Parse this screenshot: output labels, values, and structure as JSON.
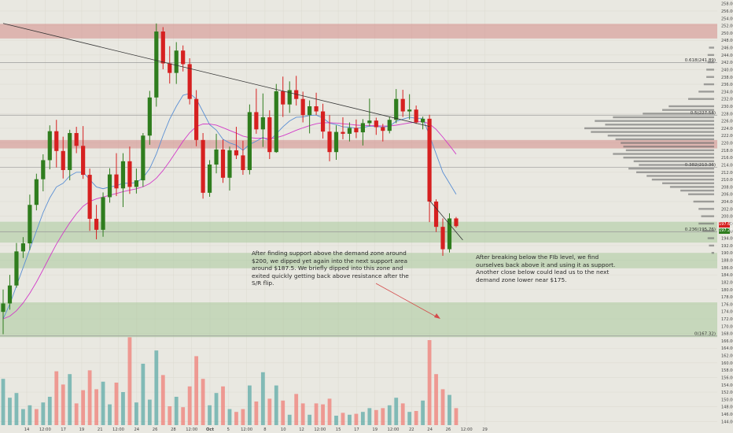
{
  "colors": {
    "background": "#e9e8e1",
    "up_candle": "#2f7d1e",
    "down_candle": "#d62020",
    "supply_zone": "#d48a88",
    "demand_zone": "#a9c99d",
    "volume_up": "#6fb2ae",
    "volume_down": "#ef8b84",
    "ema_fast": "#5a8fd4",
    "ema_slow": "#d23cc8",
    "trendline": "#333333",
    "profile": "#6a6a6a",
    "annotation_arrow": "#d44b4b"
  },
  "annotations": {
    "note_1": "After finding support above the demand zone around $200, we dipped yet again into the next support area around $187.5. We briefly dipped into this zone and exited quickly getting back above resistance after the S/R flip.",
    "note_2": "After breaking below the FIb level, we find ourselves back above it and using it as support. Another close below could lead us to the next demand zone lower near $175."
  },
  "chart_data": {
    "type": "candlestick",
    "title": "",
    "xlabel": "",
    "ylabel": "",
    "ylim": [
      143,
      259
    ],
    "grid": true,
    "x_ticks": [
      "14",
      "12:00",
      "17",
      "19",
      "21",
      "12:00",
      "24",
      "26",
      "28",
      "12:00",
      "Oct",
      "5",
      "12:00",
      "8",
      "10",
      "12",
      "12:00",
      "15",
      "17",
      "19",
      "12:00",
      "22",
      "24",
      "26",
      "12:00",
      "29"
    ],
    "y_ticks": [
      144,
      146,
      148,
      150,
      152,
      154,
      156,
      158,
      160,
      162,
      164,
      166,
      168,
      170,
      172,
      174,
      176,
      178,
      180,
      182,
      184,
      186,
      188,
      190,
      192,
      194,
      196,
      198,
      200,
      202,
      204,
      206,
      208,
      210,
      212,
      214,
      216,
      218,
      220,
      222,
      224,
      226,
      228,
      230,
      232,
      234,
      236,
      238,
      240,
      242,
      244,
      246,
      248,
      250,
      252,
      254,
      256,
      258
    ],
    "current_prices": [
      "197.64",
      "197.26"
    ],
    "fib_levels": [
      {
        "label": "0.618(241.89)",
        "value": 241.89
      },
      {
        "label": "0.5(227.58)",
        "value": 227.58
      },
      {
        "label": "0.382(213.36)",
        "value": 213.36
      },
      {
        "label": "0.236(195.76)",
        "value": 195.76
      },
      {
        "label": "0(167.32)",
        "value": 167.32
      }
    ],
    "zones": [
      {
        "type": "supply",
        "from": 248.5,
        "to": 252.5
      },
      {
        "type": "supply",
        "from": 218.5,
        "to": 220.8
      },
      {
        "type": "demand",
        "from": 192.8,
        "to": 198.5
      },
      {
        "type": "demand",
        "from": 185.8,
        "to": 190.0
      },
      {
        "type": "demand",
        "from": 167.0,
        "to": 176.5
      }
    ],
    "trendlines": [
      {
        "from": [
          0,
          252.6
        ],
        "to": [
          64,
          224.5
        ]
      },
      {
        "from": [
          64,
          204.3
        ],
        "to": [
          69,
          193.5
        ]
      }
    ],
    "candles": [
      {
        "o": 173.9,
        "h": 180.0,
        "l": 167.8,
        "c": 176.2
      },
      {
        "o": 176.2,
        "h": 184.0,
        "l": 174.5,
        "c": 181.1
      },
      {
        "o": 181.1,
        "h": 192.7,
        "l": 180.5,
        "c": 190.4
      },
      {
        "o": 190.4,
        "h": 194.3,
        "l": 188.6,
        "c": 192.6
      },
      {
        "o": 192.6,
        "h": 205.9,
        "l": 190.8,
        "c": 203.1
      },
      {
        "o": 203.1,
        "h": 211.6,
        "l": 201.6,
        "c": 210.1
      },
      {
        "o": 210.1,
        "h": 216.9,
        "l": 206.8,
        "c": 215.3
      },
      {
        "o": 215.3,
        "h": 224.8,
        "l": 212.8,
        "c": 223.2
      },
      {
        "o": 223.2,
        "h": 226.3,
        "l": 213.3,
        "c": 217.8
      },
      {
        "o": 217.8,
        "h": 221.7,
        "l": 210.3,
        "c": 212.6
      },
      {
        "o": 212.6,
        "h": 223.6,
        "l": 209.8,
        "c": 222.7
      },
      {
        "o": 222.7,
        "h": 224.4,
        "l": 217.2,
        "c": 219.2
      },
      {
        "o": 219.2,
        "h": 224.6,
        "l": 210.2,
        "c": 211.3
      },
      {
        "o": 211.3,
        "h": 213.0,
        "l": 196.0,
        "c": 199.3
      },
      {
        "o": 199.3,
        "h": 203.1,
        "l": 193.7,
        "c": 196.3
      },
      {
        "o": 196.3,
        "h": 206.5,
        "l": 194.4,
        "c": 205.2
      },
      {
        "o": 205.2,
        "h": 213.1,
        "l": 203.7,
        "c": 211.4
      },
      {
        "o": 211.4,
        "h": 217.2,
        "l": 205.5,
        "c": 207.6
      },
      {
        "o": 207.6,
        "h": 217.2,
        "l": 202.5,
        "c": 215.0
      },
      {
        "o": 215.0,
        "h": 219.0,
        "l": 206.1,
        "c": 208.0
      },
      {
        "o": 208.0,
        "h": 213.0,
        "l": 206.2,
        "c": 209.8
      },
      {
        "o": 209.8,
        "h": 222.7,
        "l": 208.0,
        "c": 222.0
      },
      {
        "o": 222.0,
        "h": 234.2,
        "l": 219.5,
        "c": 232.4
      },
      {
        "o": 232.4,
        "h": 252.6,
        "l": 229.9,
        "c": 250.4
      },
      {
        "o": 250.4,
        "h": 251.6,
        "l": 240.1,
        "c": 241.7
      },
      {
        "o": 241.7,
        "h": 246.4,
        "l": 236.2,
        "c": 239.1
      },
      {
        "o": 239.1,
        "h": 247.5,
        "l": 236.1,
        "c": 245.2
      },
      {
        "o": 245.2,
        "h": 246.6,
        "l": 239.5,
        "c": 241.5
      },
      {
        "o": 241.5,
        "h": 243.1,
        "l": 230.5,
        "c": 232.0
      },
      {
        "o": 232.0,
        "h": 234.4,
        "l": 219.1,
        "c": 220.8
      },
      {
        "o": 220.8,
        "h": 222.7,
        "l": 204.8,
        "c": 206.4
      },
      {
        "o": 206.4,
        "h": 215.3,
        "l": 205.3,
        "c": 214.1
      },
      {
        "o": 214.1,
        "h": 222.5,
        "l": 211.7,
        "c": 218.2
      },
      {
        "o": 218.2,
        "h": 220.9,
        "l": 209.1,
        "c": 210.5
      },
      {
        "o": 210.5,
        "h": 219.0,
        "l": 207.0,
        "c": 218.0
      },
      {
        "o": 218.0,
        "h": 224.4,
        "l": 215.6,
        "c": 216.6
      },
      {
        "o": 216.6,
        "h": 220.6,
        "l": 211.3,
        "c": 212.6
      },
      {
        "o": 212.6,
        "h": 230.5,
        "l": 211.4,
        "c": 228.4
      },
      {
        "o": 228.4,
        "h": 234.8,
        "l": 222.5,
        "c": 223.7
      },
      {
        "o": 223.7,
        "h": 233.5,
        "l": 218.9,
        "c": 227.0
      },
      {
        "o": 227.0,
        "h": 228.9,
        "l": 215.6,
        "c": 217.5
      },
      {
        "o": 217.5,
        "h": 236.1,
        "l": 217.3,
        "c": 234.1
      },
      {
        "o": 234.1,
        "h": 238.1,
        "l": 227.1,
        "c": 230.5
      },
      {
        "o": 230.5,
        "h": 236.8,
        "l": 228.2,
        "c": 234.4
      },
      {
        "o": 234.4,
        "h": 238.3,
        "l": 230.2,
        "c": 232.0
      },
      {
        "o": 232.0,
        "h": 234.0,
        "l": 225.6,
        "c": 227.6
      },
      {
        "o": 227.6,
        "h": 231.6,
        "l": 222.6,
        "c": 230.0
      },
      {
        "o": 230.0,
        "h": 233.7,
        "l": 227.6,
        "c": 228.6
      },
      {
        "o": 228.6,
        "h": 230.7,
        "l": 221.2,
        "c": 223.1
      },
      {
        "o": 223.1,
        "h": 227.6,
        "l": 215.0,
        "c": 217.5
      },
      {
        "o": 217.5,
        "h": 224.8,
        "l": 215.4,
        "c": 223.0
      },
      {
        "o": 223.0,
        "h": 227.0,
        "l": 221.0,
        "c": 222.5
      },
      {
        "o": 222.5,
        "h": 225.6,
        "l": 220.4,
        "c": 224.1
      },
      {
        "o": 224.1,
        "h": 226.4,
        "l": 221.3,
        "c": 222.9
      },
      {
        "o": 222.9,
        "h": 226.5,
        "l": 219.3,
        "c": 225.4
      },
      {
        "o": 225.4,
        "h": 232.1,
        "l": 224.5,
        "c": 226.1
      },
      {
        "o": 226.1,
        "h": 226.9,
        "l": 222.2,
        "c": 224.3
      },
      {
        "o": 224.3,
        "h": 225.2,
        "l": 220.4,
        "c": 223.3
      },
      {
        "o": 223.3,
        "h": 227.2,
        "l": 222.6,
        "c": 226.3
      },
      {
        "o": 226.3,
        "h": 234.7,
        "l": 225.4,
        "c": 232.0
      },
      {
        "o": 232.0,
        "h": 234.5,
        "l": 227.1,
        "c": 228.6
      },
      {
        "o": 228.6,
        "h": 233.3,
        "l": 226.4,
        "c": 229.1
      },
      {
        "o": 229.1,
        "h": 230.2,
        "l": 225.2,
        "c": 225.6
      },
      {
        "o": 225.6,
        "h": 227.2,
        "l": 223.7,
        "c": 226.6
      },
      {
        "o": 226.6,
        "h": 227.7,
        "l": 198.4,
        "c": 204.0
      },
      {
        "o": 204.0,
        "h": 204.6,
        "l": 195.7,
        "c": 197.1
      },
      {
        "o": 197.1,
        "h": 199.4,
        "l": 189.2,
        "c": 191.0
      },
      {
        "o": 191.0,
        "h": 200.8,
        "l": 190.1,
        "c": 199.4
      },
      {
        "o": 199.4,
        "h": 199.8,
        "l": 196.9,
        "c": 197.3
      }
    ],
    "volume": [
      {
        "v": 0.49,
        "up": true
      },
      {
        "v": 0.29,
        "up": true
      },
      {
        "v": 0.34,
        "up": true
      },
      {
        "v": 0.17,
        "up": true
      },
      {
        "v": 0.21,
        "up": true
      },
      {
        "v": 0.17,
        "up": false
      },
      {
        "v": 0.24,
        "up": true
      },
      {
        "v": 0.3,
        "up": true
      },
      {
        "v": 0.57,
        "up": false
      },
      {
        "v": 0.43,
        "up": false
      },
      {
        "v": 0.54,
        "up": true
      },
      {
        "v": 0.23,
        "up": false
      },
      {
        "v": 0.37,
        "up": false
      },
      {
        "v": 0.58,
        "up": false
      },
      {
        "v": 0.38,
        "up": false
      },
      {
        "v": 0.46,
        "up": true
      },
      {
        "v": 0.22,
        "up": true
      },
      {
        "v": 0.45,
        "up": false
      },
      {
        "v": 0.35,
        "up": true
      },
      {
        "v": 0.93,
        "up": false
      },
      {
        "v": 0.24,
        "up": true
      },
      {
        "v": 0.65,
        "up": true
      },
      {
        "v": 0.27,
        "up": true
      },
      {
        "v": 0.79,
        "up": true
      },
      {
        "v": 0.53,
        "up": false
      },
      {
        "v": 0.2,
        "up": false
      },
      {
        "v": 0.3,
        "up": true
      },
      {
        "v": 0.19,
        "up": false
      },
      {
        "v": 0.41,
        "up": false
      },
      {
        "v": 0.73,
        "up": false
      },
      {
        "v": 0.49,
        "up": false
      },
      {
        "v": 0.21,
        "up": true
      },
      {
        "v": 0.34,
        "up": true
      },
      {
        "v": 0.41,
        "up": false
      },
      {
        "v": 0.17,
        "up": true
      },
      {
        "v": 0.14,
        "up": false
      },
      {
        "v": 0.17,
        "up": false
      },
      {
        "v": 0.42,
        "up": true
      },
      {
        "v": 0.25,
        "up": false
      },
      {
        "v": 0.56,
        "up": true
      },
      {
        "v": 0.28,
        "up": false
      },
      {
        "v": 0.42,
        "up": true
      },
      {
        "v": 0.26,
        "up": false
      },
      {
        "v": 0.11,
        "up": true
      },
      {
        "v": 0.33,
        "up": false
      },
      {
        "v": 0.23,
        "up": false
      },
      {
        "v": 0.11,
        "up": true
      },
      {
        "v": 0.23,
        "up": false
      },
      {
        "v": 0.22,
        "up": false
      },
      {
        "v": 0.28,
        "up": false
      },
      {
        "v": 0.1,
        "up": true
      },
      {
        "v": 0.13,
        "up": false
      },
      {
        "v": 0.11,
        "up": true
      },
      {
        "v": 0.12,
        "up": false
      },
      {
        "v": 0.14,
        "up": true
      },
      {
        "v": 0.18,
        "up": true
      },
      {
        "v": 0.16,
        "up": false
      },
      {
        "v": 0.18,
        "up": false
      },
      {
        "v": 0.21,
        "up": true
      },
      {
        "v": 0.29,
        "up": true
      },
      {
        "v": 0.23,
        "up": false
      },
      {
        "v": 0.14,
        "up": true
      },
      {
        "v": 0.15,
        "up": false
      },
      {
        "v": 0.26,
        "up": true
      },
      {
        "v": 0.9,
        "up": false
      },
      {
        "v": 0.54,
        "up": false
      },
      {
        "v": 0.38,
        "up": false
      },
      {
        "v": 0.32,
        "up": true
      },
      {
        "v": 0.18,
        "up": false
      }
    ],
    "volume_profile": [
      {
        "p": 246,
        "v": 0.04
      },
      {
        "p": 244,
        "v": 0.05
      },
      {
        "p": 242,
        "v": 0.05
      },
      {
        "p": 240,
        "v": 0.06
      },
      {
        "p": 238,
        "v": 0.06
      },
      {
        "p": 236,
        "v": 0.08
      },
      {
        "p": 234,
        "v": 0.12
      },
      {
        "p": 232,
        "v": 0.2
      },
      {
        "p": 230,
        "v": 0.35
      },
      {
        "p": 229,
        "v": 0.4
      },
      {
        "p": 228,
        "v": 0.55
      },
      {
        "p": 227,
        "v": 0.78
      },
      {
        "p": 226,
        "v": 0.92
      },
      {
        "p": 225,
        "v": 0.84
      },
      {
        "p": 224,
        "v": 1.0
      },
      {
        "p": 223,
        "v": 0.95
      },
      {
        "p": 222,
        "v": 0.82
      },
      {
        "p": 221,
        "v": 0.76
      },
      {
        "p": 220,
        "v": 0.72
      },
      {
        "p": 219,
        "v": 0.7
      },
      {
        "p": 218,
        "v": 0.68
      },
      {
        "p": 217,
        "v": 0.78
      },
      {
        "p": 216,
        "v": 0.7
      },
      {
        "p": 215,
        "v": 0.62
      },
      {
        "p": 214,
        "v": 0.58
      },
      {
        "p": 213,
        "v": 0.66
      },
      {
        "p": 212,
        "v": 0.6
      },
      {
        "p": 211,
        "v": 0.52
      },
      {
        "p": 210,
        "v": 0.48
      },
      {
        "p": 209,
        "v": 0.4
      },
      {
        "p": 208,
        "v": 0.34
      },
      {
        "p": 207,
        "v": 0.26
      },
      {
        "p": 206,
        "v": 0.2
      },
      {
        "p": 204,
        "v": 0.16
      },
      {
        "p": 202,
        "v": 0.12
      },
      {
        "p": 200,
        "v": 0.1
      },
      {
        "p": 198,
        "v": 0.12
      },
      {
        "p": 196,
        "v": 0.09
      },
      {
        "p": 194,
        "v": 0.05
      },
      {
        "p": 192,
        "v": 0.04
      },
      {
        "p": 190,
        "v": 0.02
      }
    ],
    "ema_fast": [
      172,
      176,
      181,
      186,
      191,
      196,
      201,
      205,
      208,
      209,
      211,
      212,
      212,
      210,
      208,
      207.5,
      208,
      208.3,
      209,
      209,
      209.2,
      210.5,
      213,
      217,
      222,
      226.5,
      230,
      233,
      233.5,
      232,
      228.5,
      225,
      223.5,
      221,
      220,
      219.4,
      218,
      219.6,
      220.5,
      221.5,
      220.6,
      222.5,
      224.4,
      226,
      227,
      227.1,
      227.5,
      227.6,
      226.8,
      225.4,
      225,
      224.4,
      224.3,
      224,
      224.2,
      224.6,
      224.5,
      224.3,
      224.6,
      225.9,
      226.5,
      227,
      226.7,
      226.7,
      222,
      217,
      212,
      209,
      206
    ]
  }
}
